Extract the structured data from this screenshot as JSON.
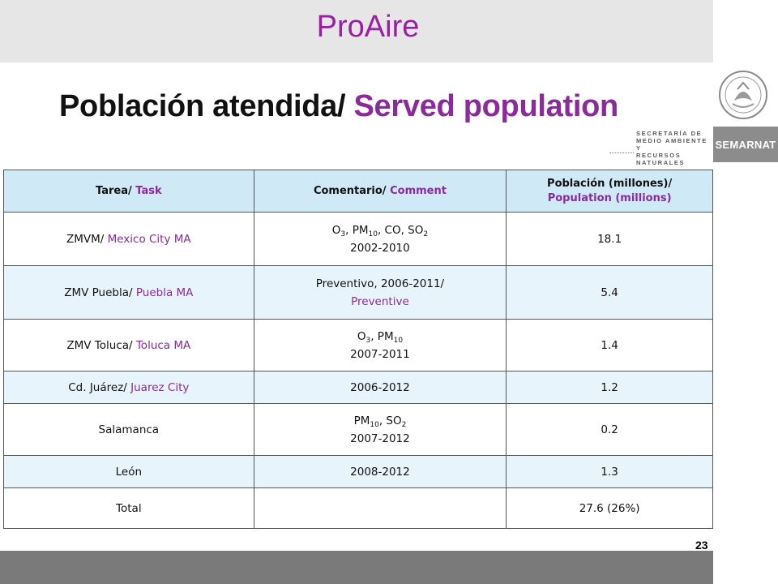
{
  "header": {
    "brand": "ProAire",
    "title_es": "Población atendida/",
    "title_en": "Served population"
  },
  "logo": {
    "agency_lines": [
      "SECRETARÍA DE",
      "MEDIO AMBIENTE Y",
      "RECURSOS NATURALES"
    ],
    "badge": "SEMARNAT"
  },
  "table": {
    "headers": [
      {
        "es": "Tarea/",
        "en": "Task"
      },
      {
        "es": "Comentario/",
        "en": "Comment"
      },
      {
        "es": "Población (millones)/",
        "en": "Population (millions)"
      }
    ],
    "rows": [
      {
        "task_es": "ZMVM/",
        "task_en": "Mexico City MA",
        "comment_line1": "O3, PM10, CO, SO2",
        "comment_line2": "2002-2010",
        "population": "18.1"
      },
      {
        "task_es": "ZMV Puebla/",
        "task_en": "Puebla MA",
        "comment_line1": "Preventivo, 2006-2011/",
        "comment_line2": "Preventive",
        "population": "5.4"
      },
      {
        "task_es": "ZMV Toluca/",
        "task_en": "Toluca MA",
        "comment_line1": "O3, PM10",
        "comment_line2": "2007-2011",
        "population": "1.4"
      },
      {
        "task_es": "Cd. Juárez/",
        "task_en": "Juarez City",
        "comment_line1": "2006-2012",
        "comment_line2": "",
        "population": "1.2"
      },
      {
        "task_es": "Salamanca",
        "task_en": "",
        "comment_line1": "PM10, SO2",
        "comment_line2": "2007-2012",
        "population": "0.2"
      },
      {
        "task_es": "León",
        "task_en": "",
        "comment_line1": "2008-2012",
        "comment_line2": "",
        "population": "1.3"
      },
      {
        "task_es": "Total",
        "task_en": "",
        "comment_line1": "",
        "comment_line2": "",
        "population": "27.6 (26%)"
      }
    ]
  },
  "footer": {
    "page_number": "23"
  },
  "colors": {
    "accent": "#8a2a9b",
    "brand": "#9b1fa4",
    "header_fill": "#cfe9f7",
    "alt_row_fill": "#e8f4fb",
    "band": "#e6e6e6",
    "footer": "#7a7a7a"
  },
  "icons": {
    "seal": "mexican-coat-of-arms-icon"
  }
}
